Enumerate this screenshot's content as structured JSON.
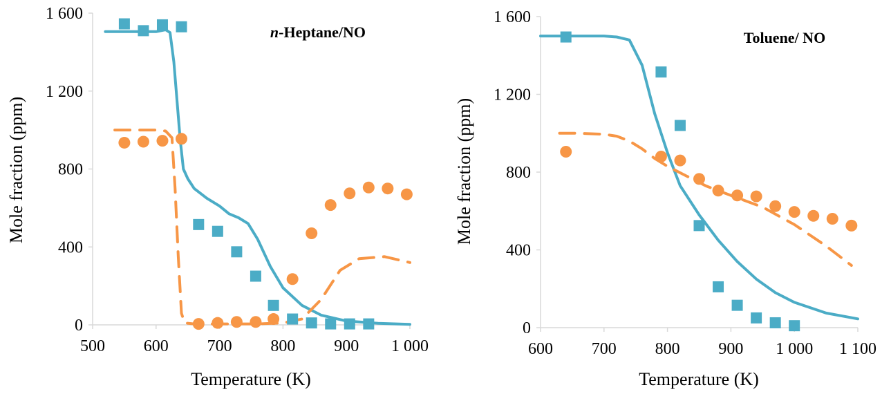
{
  "colors": {
    "axis": "#d9d9d9",
    "no_series": "#4bacc6",
    "nox_series": "#f79646"
  },
  "chart_data": [
    {
      "type": "scatter",
      "title_italic": "n",
      "title_rest": "-Heptane/NO",
      "xlabel": "Temperature (K)",
      "ylabel": "Mole fraction (ppm)",
      "xlim": [
        500,
        1000
      ],
      "ylim": [
        0,
        1600
      ],
      "xticks": [
        500,
        600,
        700,
        800,
        900,
        1000
      ],
      "xtick_labels": [
        "500",
        "600",
        "700",
        "800",
        "900",
        "1 000"
      ],
      "yticks": [
        0,
        400,
        800,
        1200,
        1600
      ],
      "ytick_labels": [
        "0",
        "400",
        "800",
        "1 200",
        "1 600"
      ],
      "grid": false,
      "series": [
        {
          "kind": "points",
          "marker": "square",
          "color": "#4bacc6",
          "x": [
            550,
            580,
            610,
            640,
            667,
            697,
            727,
            757,
            785,
            815,
            845,
            875,
            905,
            935
          ],
          "y": [
            1545,
            1510,
            1540,
            1530,
            515,
            480,
            375,
            250,
            100,
            30,
            10,
            5,
            5,
            5
          ]
        },
        {
          "kind": "points",
          "marker": "circle",
          "color": "#f79646",
          "x": [
            550,
            580,
            610,
            640,
            667,
            697,
            727,
            757,
            785,
            815,
            845,
            875,
            905,
            935,
            965,
            995
          ],
          "y": [
            935,
            940,
            945,
            955,
            5,
            10,
            15,
            15,
            30,
            235,
            470,
            615,
            675,
            705,
            700,
            670
          ]
        },
        {
          "kind": "line",
          "style": "solid",
          "color": "#4bacc6",
          "x": [
            520,
            560,
            600,
            615,
            622,
            628,
            633,
            638,
            643,
            650,
            660,
            680,
            700,
            715,
            730,
            745,
            760,
            780,
            800,
            830,
            860,
            900,
            950,
            1000
          ],
          "y": [
            1505,
            1505,
            1505,
            1515,
            1500,
            1350,
            1150,
            950,
            800,
            750,
            700,
            650,
            610,
            570,
            550,
            520,
            440,
            300,
            190,
            100,
            50,
            20,
            8,
            3
          ]
        },
        {
          "kind": "line",
          "style": "dashed",
          "color": "#f79646",
          "x": [
            535,
            570,
            600,
            615,
            625,
            630,
            635,
            640,
            645,
            660,
            700,
            760,
            800,
            830,
            860,
            890,
            920,
            960,
            1000
          ],
          "y": [
            1000,
            1000,
            1000,
            995,
            960,
            700,
            350,
            60,
            10,
            5,
            5,
            5,
            10,
            30,
            130,
            280,
            340,
            350,
            320
          ]
        }
      ]
    },
    {
      "type": "scatter",
      "title_italic": "",
      "title_rest": "Toluene/ NO",
      "xlabel": "Temperature (K)",
      "ylabel": "Mole fraction (ppm)",
      "xlim": [
        600,
        1100
      ],
      "ylim": [
        0,
        1600
      ],
      "xticks": [
        600,
        700,
        800,
        900,
        1000,
        1100
      ],
      "xtick_labels": [
        "600",
        "700",
        "800",
        "900",
        "1 000",
        "1 100"
      ],
      "yticks": [
        0,
        400,
        800,
        1200,
        1600
      ],
      "ytick_labels": [
        "0",
        "400",
        "800",
        "1 200",
        "1 600"
      ],
      "grid": false,
      "series": [
        {
          "kind": "points",
          "marker": "square",
          "color": "#4bacc6",
          "x": [
            640,
            790,
            820,
            850,
            880,
            910,
            940,
            970,
            1000
          ],
          "y": [
            1495,
            1315,
            1040,
            525,
            210,
            115,
            50,
            25,
            10
          ]
        },
        {
          "kind": "points",
          "marker": "circle",
          "color": "#f79646",
          "x": [
            640,
            790,
            820,
            850,
            880,
            910,
            940,
            970,
            1000,
            1030,
            1060,
            1090
          ],
          "y": [
            905,
            880,
            860,
            765,
            705,
            680,
            675,
            625,
            595,
            575,
            560,
            525
          ]
        },
        {
          "kind": "line",
          "style": "solid",
          "color": "#4bacc6",
          "x": [
            600,
            650,
            700,
            720,
            740,
            760,
            780,
            800,
            820,
            850,
            880,
            910,
            940,
            970,
            1000,
            1050,
            1100
          ],
          "y": [
            1500,
            1500,
            1500,
            1495,
            1480,
            1350,
            1100,
            900,
            730,
            580,
            450,
            340,
            250,
            180,
            130,
            75,
            45
          ]
        },
        {
          "kind": "line",
          "style": "dashed",
          "color": "#f79646",
          "x": [
            630,
            660,
            700,
            720,
            740,
            760,
            780,
            800,
            830,
            860,
            900,
            950,
            1000,
            1050,
            1090
          ],
          "y": [
            1000,
            1000,
            995,
            985,
            960,
            920,
            870,
            830,
            780,
            730,
            680,
            620,
            530,
            420,
            320
          ]
        }
      ]
    }
  ]
}
